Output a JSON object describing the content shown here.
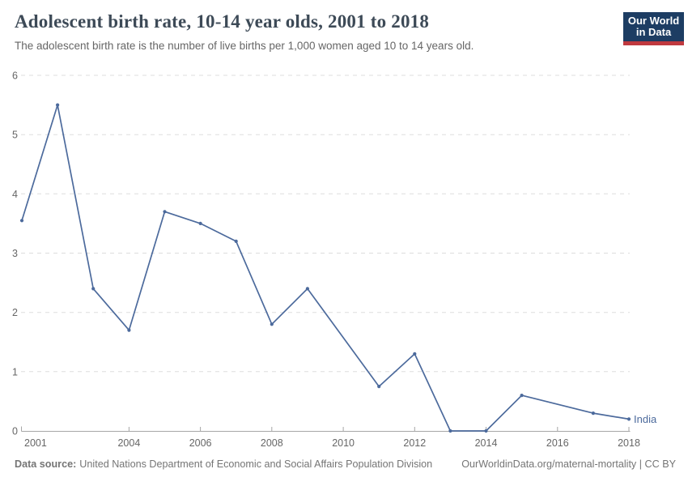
{
  "header": {
    "title": "Adolescent birth rate, 10-14 year olds, 2001 to 2018",
    "subtitle": "The adolescent birth rate is the number of live births per 1,000 women aged 10 to 14 years old."
  },
  "logo": {
    "line1": "Our World",
    "line2": "in Data",
    "background": "#1d3d63",
    "stripe": "#c0393f"
  },
  "chart_data": {
    "type": "line",
    "title": "Adolescent birth rate, 10-14 year olds, 2001 to 2018",
    "xlabel": "",
    "ylabel": "",
    "xlim": [
      2001,
      2018
    ],
    "ylim": [
      0,
      6
    ],
    "yticks": [
      0,
      1,
      2,
      3,
      4,
      5,
      6
    ],
    "xticks": [
      2001,
      2004,
      2006,
      2008,
      2010,
      2012,
      2014,
      2016,
      2018
    ],
    "grid": "horizontal-dashed",
    "legend_position": "end-of-line",
    "series": [
      {
        "name": "India",
        "color": "#4C6A9C",
        "points": [
          {
            "year": 2001,
            "value": 3.55
          },
          {
            "year": 2002,
            "value": 5.5
          },
          {
            "year": 2003,
            "value": 2.4
          },
          {
            "year": 2004,
            "value": 1.7
          },
          {
            "year": 2005,
            "value": 3.7
          },
          {
            "year": 2006,
            "value": 3.5
          },
          {
            "year": 2007,
            "value": 3.2
          },
          {
            "year": 2008,
            "value": 1.8
          },
          {
            "year": 2009,
            "value": 2.4
          },
          {
            "year": 2011,
            "value": 0.75
          },
          {
            "year": 2012,
            "value": 1.3
          },
          {
            "year": 2013,
            "value": 0
          },
          {
            "year": 2014,
            "value": 0
          },
          {
            "year": 2015,
            "value": 0.6
          },
          {
            "year": 2017,
            "value": 0.3
          },
          {
            "year": 2018,
            "value": 0.2
          }
        ],
        "gap_years_without_marker": [
          2010,
          2016
        ]
      }
    ]
  },
  "footer": {
    "source_label": "Data source:",
    "source_text": "United Nations Department of Economic and Social Affairs Population Division",
    "link": "OurWorldinData.org/maternal-mortality | CC BY"
  },
  "colors": {
    "line": "#4C6A9C",
    "axis": "#a6a6a6",
    "gridline": "#dddddd",
    "tick_label": "#666666",
    "title": "#3d4a57",
    "subtitle": "#666666",
    "footer": "#757575"
  }
}
